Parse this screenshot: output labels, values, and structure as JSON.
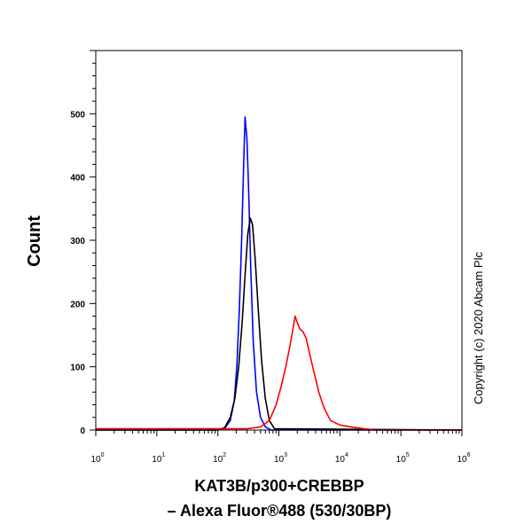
{
  "chart_data": {
    "type": "line",
    "xlabel_line1": "KAT3B/p300+CREBBP",
    "xlabel_line2": "– Alexa Fluor®488 (530/30BP)",
    "ylabel": "Count",
    "xscale": "log",
    "xlim": [
      1,
      1000000
    ],
    "ylim": [
      0,
      600
    ],
    "y_ticks": [
      0,
      100,
      200,
      300,
      400,
      500
    ],
    "x_tick_labels": [
      {
        "base": "10",
        "exp": "0"
      },
      {
        "base": "10",
        "exp": "1"
      },
      {
        "base": "10",
        "exp": "2"
      },
      {
        "base": "10",
        "exp": "3"
      },
      {
        "base": "10",
        "exp": "4"
      },
      {
        "base": "10",
        "exp": "5"
      },
      {
        "base": "10",
        "exp": "6"
      }
    ],
    "grid": false,
    "annotation": "Copyright (c) 2020 Abcam Plc",
    "series": [
      {
        "color": "#0000ff",
        "x": [
          1,
          100,
          130,
          160,
          185,
          205,
          225,
          245,
          265,
          280,
          300,
          320,
          345,
          380,
          430,
          500,
          600,
          750,
          1000000
        ],
        "y": [
          0,
          0,
          3,
          15,
          45,
          100,
          190,
          300,
          420,
          495,
          460,
          380,
          260,
          140,
          60,
          20,
          5,
          0,
          0
        ]
      },
      {
        "color": "#000000",
        "x": [
          1,
          100,
          130,
          160,
          190,
          220,
          250,
          280,
          310,
          340,
          370,
          410,
          460,
          520,
          600,
          700,
          850,
          1000000
        ],
        "y": [
          0,
          0,
          4,
          20,
          50,
          100,
          170,
          245,
          310,
          335,
          325,
          270,
          190,
          110,
          50,
          15,
          2,
          0
        ]
      },
      {
        "color": "#ff0000",
        "x": [
          1,
          300,
          500,
          700,
          900,
          1100,
          1300,
          1500,
          1700,
          1850,
          2000,
          2200,
          2500,
          2800,
          3200,
          3800,
          4500,
          5500,
          7000,
          10000,
          15000,
          25000,
          40000,
          1000000
        ],
        "y": [
          2,
          2,
          5,
          15,
          40,
          70,
          100,
          130,
          160,
          180,
          170,
          160,
          155,
          145,
          120,
          90,
          60,
          35,
          15,
          8,
          5,
          2,
          0,
          0
        ]
      }
    ]
  }
}
